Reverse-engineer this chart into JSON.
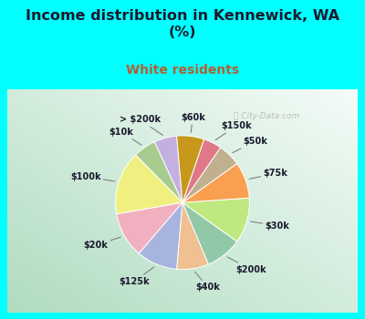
{
  "title": "Income distribution in Kennewick, WA\n(%)",
  "subtitle": "White residents",
  "title_color": "#1a1a2e",
  "subtitle_color": "#b06030",
  "bg_color": "#00ffff",
  "chart_bg_top_right": "#e8f8f0",
  "chart_bg_bottom_left": "#b8e8c8",
  "labels": [
    "> $200k",
    "$10k",
    "$100k",
    "$20k",
    "$125k",
    "$40k",
    "$200k",
    "$30k",
    "$75k",
    "$50k",
    "$150k",
    "$60k"
  ],
  "values": [
    5,
    5,
    14,
    10,
    9,
    7,
    8,
    10,
    8,
    5,
    4,
    6
  ],
  "colors": [
    "#c4b0e0",
    "#a8cc90",
    "#f0f080",
    "#f0b0c0",
    "#a8b4e0",
    "#f0c090",
    "#90c8a8",
    "#c0e880",
    "#f8a050",
    "#c0b090",
    "#e07888",
    "#c8981c"
  ],
  "startangle": 95,
  "figsize": [
    4.0,
    3.5
  ],
  "dpi": 100
}
